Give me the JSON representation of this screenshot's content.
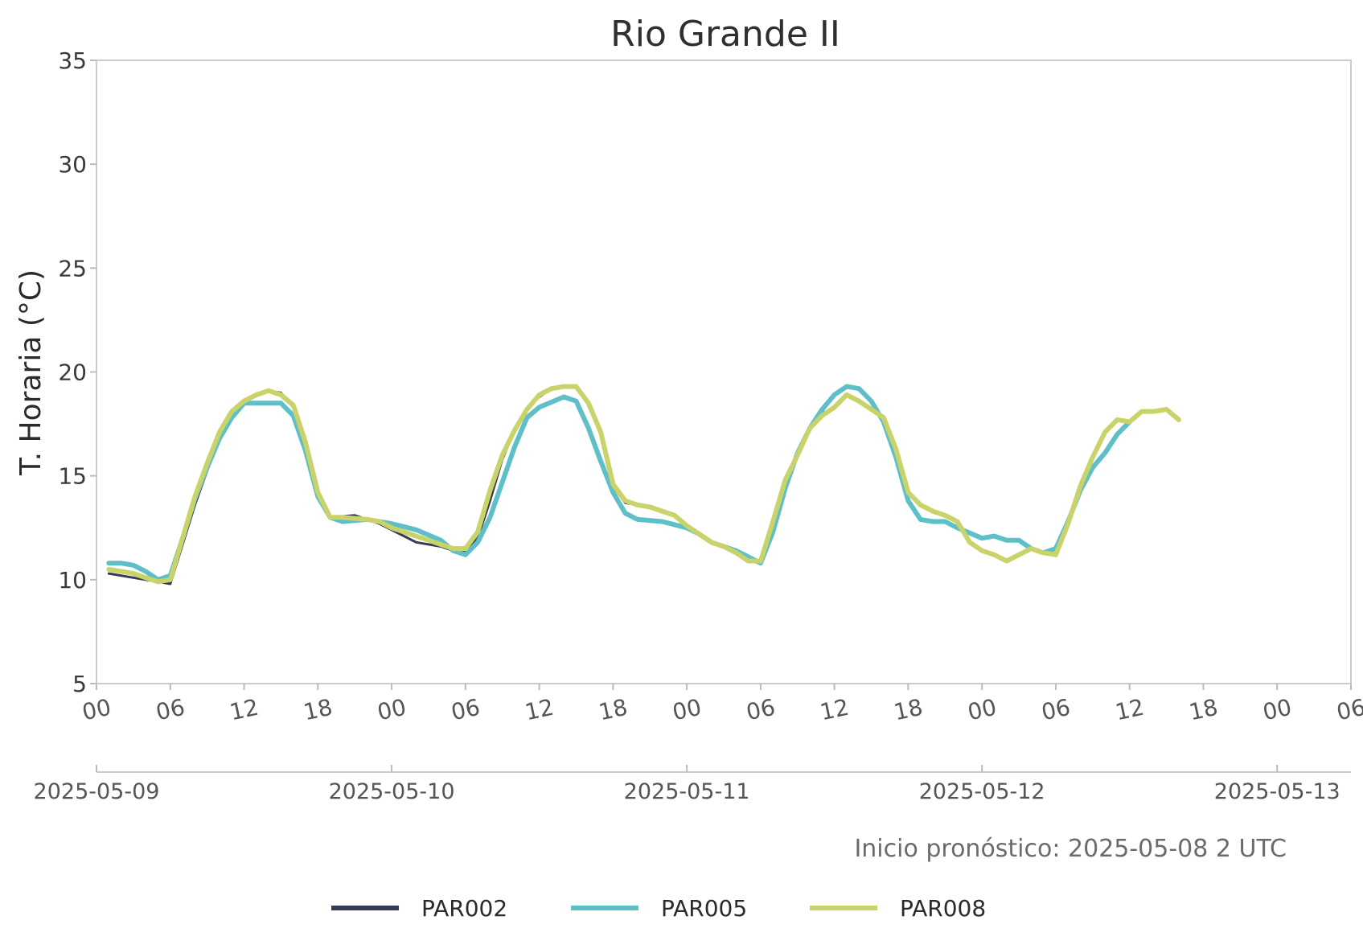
{
  "chart_data": {
    "type": "line",
    "title": "Rio Grande II",
    "ylabel": "T. Horaria (°C)",
    "ylim": [
      5,
      35
    ],
    "yticks": [
      5,
      10,
      15,
      20,
      25,
      30,
      35
    ],
    "xlim": [
      "2025-05-09 00:00",
      "2025-05-13 06:00"
    ],
    "x_hour_ticks": [
      "00",
      "06",
      "12",
      "18",
      "00",
      "06",
      "12",
      "18",
      "00",
      "06",
      "12",
      "18",
      "00",
      "06",
      "12",
      "18",
      "00",
      "06"
    ],
    "x_date_ticks": [
      "2025-05-09",
      "2025-05-10",
      "2025-05-11",
      "2025-05-12",
      "2025-05-13"
    ],
    "grid": false,
    "legend_position": "bottom",
    "annotation": "Inicio pronóstico: 2025-05-08 2 UTC",
    "series": [
      {
        "name": "PAR002",
        "color": "#353a56",
        "width": 3,
        "points": [
          [
            "2025-05-09 01:00",
            10.3
          ],
          [
            "2025-05-09 03:00",
            10.1
          ],
          [
            "2025-05-09 05:00",
            9.9
          ],
          [
            "2025-05-09 06:00",
            9.8
          ],
          [
            "2025-05-09 08:00",
            13.6
          ],
          [
            "2025-05-09 10:00",
            16.9
          ],
          [
            "2025-05-09 12:00",
            18.6
          ],
          [
            "2025-05-09 14:00",
            19.1
          ],
          [
            "2025-05-09 15:00",
            19.0
          ],
          [
            "2025-05-09 16:00",
            18.3
          ],
          [
            "2025-05-09 17:00",
            16.5
          ],
          [
            "2025-05-09 18:00",
            14.0
          ],
          [
            "2025-05-09 19:00",
            13.0
          ],
          [
            "2025-05-09 21:00",
            13.1
          ],
          [
            "2025-05-09 23:00",
            12.7
          ],
          [
            "2025-05-10 02:00",
            11.8
          ],
          [
            "2025-05-10 04:00",
            11.6
          ],
          [
            "2025-05-10 05:00",
            11.4
          ],
          [
            "2025-05-10 06:00",
            11.4
          ],
          [
            "2025-05-10 07:00",
            12.0
          ],
          [
            "2025-05-10 08:00",
            13.8
          ],
          [
            "2025-05-10 09:00",
            15.8
          ],
          [
            "2025-05-10 10:00",
            17.2
          ],
          [
            "2025-05-10 11:00",
            18.2
          ],
          [
            "2025-05-10 12:00",
            18.8
          ],
          [
            "2025-05-10 13:00",
            19.2
          ],
          [
            "2025-05-10 15:00",
            19.3
          ],
          [
            "2025-05-10 16:00",
            18.5
          ],
          [
            "2025-05-10 17:00",
            17.0
          ],
          [
            "2025-05-10 18:00",
            14.5
          ],
          [
            "2025-05-10 19:00",
            13.7
          ],
          [
            "2025-05-10 21:00",
            13.5
          ],
          [
            "2025-05-10 23:00",
            13.1
          ],
          [
            "2025-05-11 01:00",
            12.2
          ],
          [
            "2025-05-11 02:00",
            11.8
          ],
          [
            "2025-05-11 04:00",
            11.3
          ],
          [
            "2025-05-11 05:00",
            10.9
          ],
          [
            "2025-05-11 06:00",
            10.8
          ],
          [
            "2025-05-11 07:00",
            12.8
          ],
          [
            "2025-05-11 08:00",
            14.8
          ],
          [
            "2025-05-11 10:00",
            17.3
          ],
          [
            "2025-05-11 11:00",
            18.0
          ],
          [
            "2025-05-11 12:00",
            18.3
          ],
          [
            "2025-05-11 13:00",
            18.9
          ],
          [
            "2025-05-11 15:00",
            18.2
          ],
          [
            "2025-05-11 16:00",
            17.8
          ],
          [
            "2025-05-11 17:00",
            16.3
          ],
          [
            "2025-05-11 18:00",
            14.2
          ],
          [
            "2025-05-11 19:00",
            13.6
          ],
          [
            "2025-05-11 21:00",
            13.1
          ],
          [
            "2025-05-11 22:00",
            12.8
          ],
          [
            "2025-05-11 23:00",
            11.8
          ],
          [
            "2025-05-12 00:00",
            11.4
          ],
          [
            "2025-05-12 02:00",
            10.9
          ],
          [
            "2025-05-12 04:00",
            11.5
          ],
          [
            "2025-05-12 05:00",
            11.3
          ],
          [
            "2025-05-12 06:00",
            11.2
          ],
          [
            "2025-05-12 08:00",
            14.5
          ],
          [
            "2025-05-12 09:00",
            15.9
          ],
          [
            "2025-05-12 10:00",
            17.1
          ],
          [
            "2025-05-12 11:00",
            17.7
          ],
          [
            "2025-05-12 12:00",
            17.6
          ],
          [
            "2025-05-12 13:00",
            18.1
          ],
          [
            "2025-05-12 14:00",
            18.1
          ],
          [
            "2025-05-12 15:00",
            18.2
          ],
          [
            "2025-05-12 16:00",
            17.7
          ]
        ]
      },
      {
        "name": "PAR005",
        "color": "#5fbfc9",
        "width": 6,
        "points": [
          [
            "2025-05-09 01:00",
            10.8
          ],
          [
            "2025-05-09 02:00",
            10.8
          ],
          [
            "2025-05-09 03:00",
            10.7
          ],
          [
            "2025-05-09 04:00",
            10.4
          ],
          [
            "2025-05-09 05:00",
            10.0
          ],
          [
            "2025-05-09 06:00",
            10.2
          ],
          [
            "2025-05-09 07:00",
            12.0
          ],
          [
            "2025-05-09 08:00",
            13.9
          ],
          [
            "2025-05-09 09:00",
            15.4
          ],
          [
            "2025-05-09 10:00",
            16.8
          ],
          [
            "2025-05-09 11:00",
            17.8
          ],
          [
            "2025-05-09 12:00",
            18.5
          ],
          [
            "2025-05-09 14:00",
            18.5
          ],
          [
            "2025-05-09 15:00",
            18.5
          ],
          [
            "2025-05-09 16:00",
            17.9
          ],
          [
            "2025-05-09 17:00",
            16.2
          ],
          [
            "2025-05-09 18:00",
            14.0
          ],
          [
            "2025-05-09 19:00",
            13.0
          ],
          [
            "2025-05-09 20:00",
            12.8
          ],
          [
            "2025-05-09 22:00",
            12.9
          ],
          [
            "2025-05-10 00:00",
            12.7
          ],
          [
            "2025-05-10 02:00",
            12.4
          ],
          [
            "2025-05-10 04:00",
            11.9
          ],
          [
            "2025-05-10 05:00",
            11.4
          ],
          [
            "2025-05-10 06:00",
            11.2
          ],
          [
            "2025-05-10 07:00",
            11.8
          ],
          [
            "2025-05-10 08:00",
            13.0
          ],
          [
            "2025-05-10 09:00",
            14.7
          ],
          [
            "2025-05-10 10:00",
            16.4
          ],
          [
            "2025-05-10 11:00",
            17.8
          ],
          [
            "2025-05-10 12:00",
            18.3
          ],
          [
            "2025-05-10 14:00",
            18.8
          ],
          [
            "2025-05-10 15:00",
            18.6
          ],
          [
            "2025-05-10 16:00",
            17.3
          ],
          [
            "2025-05-10 17:00",
            15.7
          ],
          [
            "2025-05-10 18:00",
            14.2
          ],
          [
            "2025-05-10 19:00",
            13.2
          ],
          [
            "2025-05-10 20:00",
            12.9
          ],
          [
            "2025-05-10 22:00",
            12.8
          ],
          [
            "2025-05-11 00:00",
            12.5
          ],
          [
            "2025-05-11 01:00",
            12.2
          ],
          [
            "2025-05-11 02:00",
            11.8
          ],
          [
            "2025-05-11 04:00",
            11.4
          ],
          [
            "2025-05-11 05:00",
            11.1
          ],
          [
            "2025-05-11 06:00",
            10.8
          ],
          [
            "2025-05-11 07:00",
            12.3
          ],
          [
            "2025-05-11 08:00",
            14.4
          ],
          [
            "2025-05-11 09:00",
            16.1
          ],
          [
            "2025-05-11 10:00",
            17.3
          ],
          [
            "2025-05-11 11:00",
            18.2
          ],
          [
            "2025-05-11 12:00",
            18.9
          ],
          [
            "2025-05-11 13:00",
            19.3
          ],
          [
            "2025-05-11 14:00",
            19.2
          ],
          [
            "2025-05-11 15:00",
            18.6
          ],
          [
            "2025-05-11 16:00",
            17.6
          ],
          [
            "2025-05-11 17:00",
            15.9
          ],
          [
            "2025-05-11 18:00",
            13.8
          ],
          [
            "2025-05-11 19:00",
            12.9
          ],
          [
            "2025-05-11 20:00",
            12.8
          ],
          [
            "2025-05-11 21:00",
            12.8
          ],
          [
            "2025-05-11 22:00",
            12.5
          ],
          [
            "2025-05-12 00:00",
            12.0
          ],
          [
            "2025-05-12 01:00",
            12.1
          ],
          [
            "2025-05-12 02:00",
            11.9
          ],
          [
            "2025-05-12 03:00",
            11.9
          ],
          [
            "2025-05-12 04:00",
            11.5
          ],
          [
            "2025-05-12 05:00",
            11.3
          ],
          [
            "2025-05-12 06:00",
            11.5
          ],
          [
            "2025-05-12 07:00",
            12.8
          ],
          [
            "2025-05-12 08:00",
            14.3
          ],
          [
            "2025-05-12 09:00",
            15.4
          ],
          [
            "2025-05-12 10:00",
            16.1
          ],
          [
            "2025-05-12 11:00",
            17.0
          ],
          [
            "2025-05-12 12:00",
            17.6
          ]
        ]
      },
      {
        "name": "PAR008",
        "color": "#c9d36a",
        "width": 6,
        "points": [
          [
            "2025-05-09 01:00",
            10.5
          ],
          [
            "2025-05-09 02:00",
            10.4
          ],
          [
            "2025-05-09 03:00",
            10.3
          ],
          [
            "2025-05-09 04:00",
            10.1
          ],
          [
            "2025-05-09 05:00",
            9.9
          ],
          [
            "2025-05-09 06:00",
            10.0
          ],
          [
            "2025-05-09 07:00",
            12.0
          ],
          [
            "2025-05-09 08:00",
            14.0
          ],
          [
            "2025-05-09 09:00",
            15.6
          ],
          [
            "2025-05-09 10:00",
            17.1
          ],
          [
            "2025-05-09 11:00",
            18.1
          ],
          [
            "2025-05-09 12:00",
            18.6
          ],
          [
            "2025-05-09 13:00",
            18.9
          ],
          [
            "2025-05-09 14:00",
            19.1
          ],
          [
            "2025-05-09 15:00",
            18.9
          ],
          [
            "2025-05-09 16:00",
            18.4
          ],
          [
            "2025-05-09 17:00",
            16.6
          ],
          [
            "2025-05-09 18:00",
            14.2
          ],
          [
            "2025-05-09 19:00",
            13.0
          ],
          [
            "2025-05-09 20:00",
            13.0
          ],
          [
            "2025-05-09 22:00",
            12.9
          ],
          [
            "2025-05-09 23:00",
            12.8
          ],
          [
            "2025-05-10 00:00",
            12.5
          ],
          [
            "2025-05-10 01:00",
            12.3
          ],
          [
            "2025-05-10 03:00",
            11.9
          ],
          [
            "2025-05-10 05:00",
            11.5
          ],
          [
            "2025-05-10 06:00",
            11.5
          ],
          [
            "2025-05-10 07:00",
            12.3
          ],
          [
            "2025-05-10 08:00",
            14.3
          ],
          [
            "2025-05-10 09:00",
            16.0
          ],
          [
            "2025-05-10 10:00",
            17.2
          ],
          [
            "2025-05-10 11:00",
            18.2
          ],
          [
            "2025-05-10 12:00",
            18.9
          ],
          [
            "2025-05-10 13:00",
            19.2
          ],
          [
            "2025-05-10 14:00",
            19.3
          ],
          [
            "2025-05-10 15:00",
            19.3
          ],
          [
            "2025-05-10 16:00",
            18.5
          ],
          [
            "2025-05-10 17:00",
            17.1
          ],
          [
            "2025-05-10 18:00",
            14.6
          ],
          [
            "2025-05-10 19:00",
            13.8
          ],
          [
            "2025-05-10 20:00",
            13.6
          ],
          [
            "2025-05-10 21:00",
            13.5
          ],
          [
            "2025-05-10 22:00",
            13.3
          ],
          [
            "2025-05-10 23:00",
            13.1
          ],
          [
            "2025-05-11 00:00",
            12.6
          ],
          [
            "2025-05-11 01:00",
            12.2
          ],
          [
            "2025-05-11 02:00",
            11.8
          ],
          [
            "2025-05-11 03:00",
            11.6
          ],
          [
            "2025-05-11 04:00",
            11.3
          ],
          [
            "2025-05-11 05:00",
            10.9
          ],
          [
            "2025-05-11 06:00",
            10.9
          ],
          [
            "2025-05-11 07:00",
            12.8
          ],
          [
            "2025-05-11 08:00",
            14.8
          ],
          [
            "2025-05-11 09:00",
            16.0
          ],
          [
            "2025-05-11 10:00",
            17.3
          ],
          [
            "2025-05-11 11:00",
            17.9
          ],
          [
            "2025-05-11 12:00",
            18.3
          ],
          [
            "2025-05-11 13:00",
            18.9
          ],
          [
            "2025-05-11 14:00",
            18.6
          ],
          [
            "2025-05-11 15:00",
            18.2
          ],
          [
            "2025-05-11 16:00",
            17.8
          ],
          [
            "2025-05-11 17:00",
            16.3
          ],
          [
            "2025-05-11 18:00",
            14.2
          ],
          [
            "2025-05-11 19:00",
            13.6
          ],
          [
            "2025-05-11 20:00",
            13.3
          ],
          [
            "2025-05-11 21:00",
            13.1
          ],
          [
            "2025-05-11 22:00",
            12.8
          ],
          [
            "2025-05-11 23:00",
            11.8
          ],
          [
            "2025-05-12 00:00",
            11.4
          ],
          [
            "2025-05-12 01:00",
            11.2
          ],
          [
            "2025-05-12 02:00",
            10.9
          ],
          [
            "2025-05-12 03:00",
            11.2
          ],
          [
            "2025-05-12 04:00",
            11.5
          ],
          [
            "2025-05-12 05:00",
            11.3
          ],
          [
            "2025-05-12 06:00",
            11.2
          ],
          [
            "2025-05-12 07:00",
            12.7
          ],
          [
            "2025-05-12 08:00",
            14.5
          ],
          [
            "2025-05-12 09:00",
            15.9
          ],
          [
            "2025-05-12 10:00",
            17.1
          ],
          [
            "2025-05-12 11:00",
            17.7
          ],
          [
            "2025-05-12 12:00",
            17.6
          ],
          [
            "2025-05-12 13:00",
            18.1
          ],
          [
            "2025-05-12 14:00",
            18.1
          ],
          [
            "2025-05-12 15:00",
            18.2
          ],
          [
            "2025-05-12 16:00",
            17.7
          ]
        ]
      }
    ]
  }
}
